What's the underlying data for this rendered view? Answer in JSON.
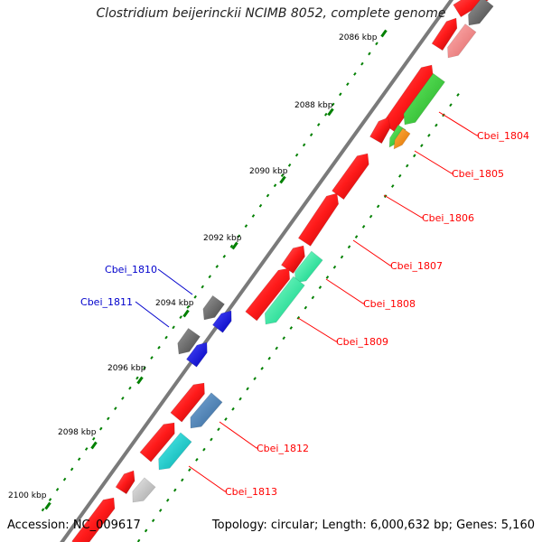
{
  "title": "Clostridium beijerinckii NCIMB 8052, complete genome",
  "footer": {
    "accession": "Accession: NC_009617",
    "summary": "Topology: circular; Length: 6,000,632 bp; Genes: 5,160"
  },
  "colors": {
    "backbone": "#7a7a7a",
    "tick": "#008000",
    "right_label": "#ff0000",
    "left_label": "#0000cc",
    "gene_red": "#ff1a1a",
    "gene_green": "#33cc33",
    "gene_orange": "#ff8c00",
    "gene_gray": "#666666",
    "gene_pink": "#f08080",
    "gene_mint": "#00ee99",
    "gene_steel": "#4682b4",
    "gene_cyan": "#00cccc",
    "gene_silver": "#c0c0c0",
    "gene_blue": "#0000ff"
  },
  "scale_labels": [
    "2086 kbp",
    "2088 kbp",
    "2090 kbp",
    "2092 kbp",
    "2094 kbp",
    "2096 kbp",
    "2098 kbp",
    "2100 kbp"
  ],
  "gene_labels_right": [
    "Cbei_1804",
    "Cbei_1805",
    "Cbei_1806",
    "Cbei_1807",
    "Cbei_1808",
    "Cbei_1809",
    "Cbei_1812",
    "Cbei_1813"
  ],
  "gene_labels_left": [
    "Cbei_1810",
    "Cbei_1811"
  ]
}
